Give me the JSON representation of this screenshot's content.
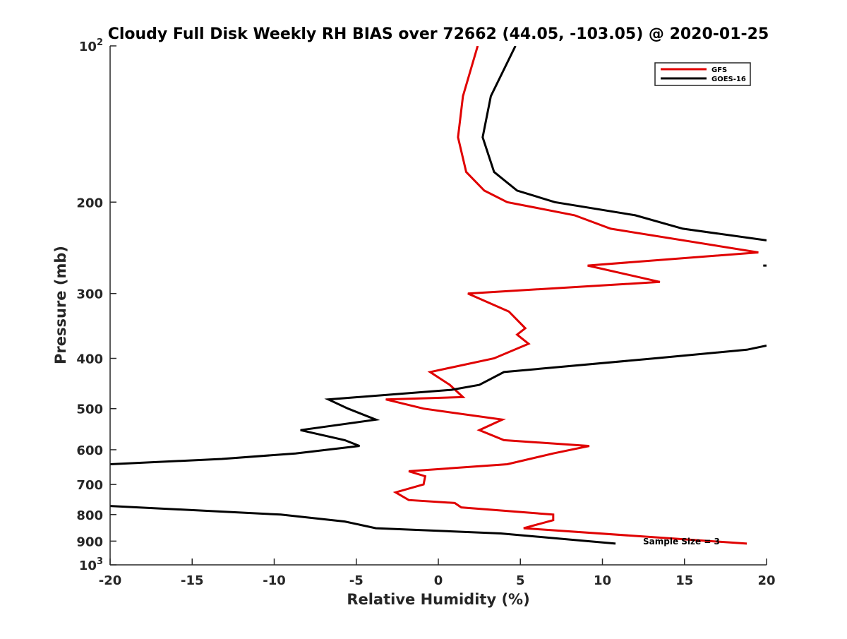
{
  "chart_data": {
    "type": "line",
    "title": "Cloudy Full Disk Weekly RH BIAS over 72662 (44.05, -103.05) @ 2020-01-25",
    "xlabel": "Relative Humidity (%)",
    "ylabel": "Pressure (mb)",
    "xlim": [
      -20,
      20
    ],
    "ylim": [
      1000,
      100
    ],
    "yscale": "log",
    "y_reversed": true,
    "grid": false,
    "legend_position": "top-right",
    "x_ticks": [
      -20,
      -15,
      -10,
      -5,
      0,
      5,
      10,
      15,
      20
    ],
    "x_tick_labels": [
      "-20",
      "-15",
      "-10",
      "-5",
      "0",
      "5",
      "10",
      "15",
      "20"
    ],
    "y_ticks": [
      {
        "value": 100,
        "base": "10",
        "exp": "2"
      },
      {
        "value": 200,
        "label": "200"
      },
      {
        "value": 300,
        "label": "300"
      },
      {
        "value": 400,
        "label": "400"
      },
      {
        "value": 500,
        "label": "500"
      },
      {
        "value": 600,
        "label": "600"
      },
      {
        "value": 700,
        "label": "700"
      },
      {
        "value": 800,
        "label": "800"
      },
      {
        "value": 900,
        "label": "900"
      },
      {
        "value": 1000,
        "base": "10",
        "exp": "3"
      }
    ],
    "annotation": "Sample Size = 3",
    "series": [
      {
        "name": "GFS",
        "color": "#e00000",
        "points": [
          [
            2.4,
            100
          ],
          [
            1.5,
            125
          ],
          [
            1.2,
            150
          ],
          [
            1.7,
            175
          ],
          [
            2.8,
            190
          ],
          [
            4.2,
            200
          ],
          [
            8.3,
            212
          ],
          [
            10.5,
            225
          ],
          [
            19.5,
            250
          ],
          [
            9.1,
            265
          ],
          [
            13.5,
            285
          ],
          [
            1.8,
            300
          ],
          [
            4.3,
            325
          ],
          [
            5.3,
            350
          ],
          [
            4.8,
            360
          ],
          [
            5.5,
            375
          ],
          [
            3.4,
            400
          ],
          [
            -0.5,
            425
          ],
          [
            0.7,
            450
          ],
          [
            1.5,
            475
          ],
          [
            -3.2,
            480
          ],
          [
            -0.9,
            500
          ],
          [
            3.9,
            525
          ],
          [
            2.5,
            550
          ],
          [
            4.0,
            575
          ],
          [
            9.2,
            590
          ],
          [
            7.0,
            610
          ],
          [
            4.2,
            640
          ],
          [
            -1.8,
            660
          ],
          [
            -0.8,
            675
          ],
          [
            -0.9,
            700
          ],
          [
            -2.6,
            725
          ],
          [
            -1.8,
            750
          ],
          [
            1.0,
            760
          ],
          [
            1.4,
            775
          ],
          [
            7.0,
            800
          ],
          [
            7.0,
            820
          ],
          [
            5.2,
            850
          ],
          [
            18.8,
            910
          ]
        ]
      },
      {
        "name": "GOES-16",
        "color": "#000000",
        "points": [
          [
            4.7,
            100
          ],
          [
            3.2,
            125
          ],
          [
            2.7,
            150
          ],
          [
            3.4,
            175
          ],
          [
            4.8,
            190
          ],
          [
            7.1,
            200
          ],
          [
            12.0,
            212
          ],
          [
            14.9,
            225
          ],
          [
            20.0,
            237
          ],
          null,
          [
            19.8,
            265
          ],
          [
            20.0,
            265
          ],
          null,
          [
            20.0,
            378
          ],
          [
            18.8,
            385
          ],
          [
            13.2,
            400
          ],
          [
            4.0,
            425
          ],
          [
            2.5,
            450
          ],
          [
            0.8,
            460
          ],
          [
            -6.7,
            480
          ],
          [
            -5.5,
            500
          ],
          [
            -3.8,
            525
          ],
          [
            -8.4,
            550
          ],
          [
            -5.7,
            575
          ],
          [
            -4.8,
            590
          ],
          [
            -8.7,
            610
          ],
          [
            -13.2,
            625
          ],
          [
            -20.0,
            640
          ],
          null,
          [
            -20.0,
            770
          ],
          [
            -9.6,
            800
          ],
          [
            -5.7,
            825
          ],
          [
            -3.8,
            850
          ],
          [
            3.8,
            870
          ],
          [
            10.8,
            910
          ]
        ]
      }
    ]
  }
}
